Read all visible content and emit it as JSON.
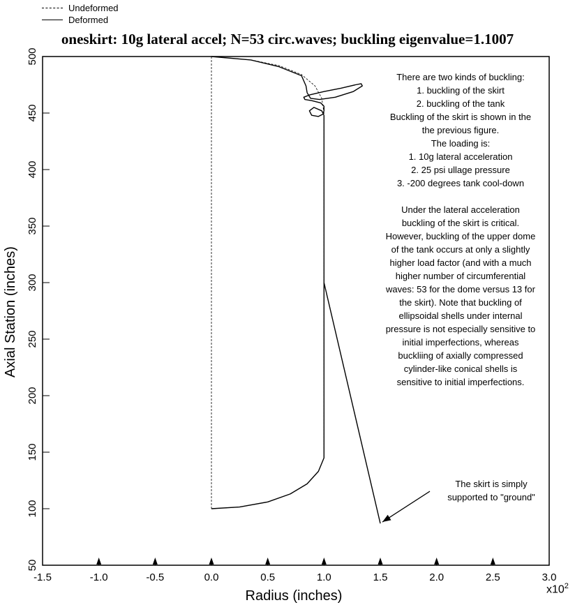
{
  "legend": {
    "undeformed_label": "Undeformed",
    "deformed_label": "Deformed"
  },
  "chart_data": {
    "type": "line",
    "title": "oneskirt: 10g lateral accel; N=53 circ.waves; buckling eigenvalue=1.1007",
    "xlabel": "Radius (inches)",
    "ylabel": "Axial Station (inches)",
    "x_multiplier_label": "x10",
    "x_multiplier_exponent": "2",
    "xlim": [
      -1.5,
      3.0
    ],
    "ylim": [
      50,
      500
    ],
    "x_ticks": [
      "-1.5",
      "-1.0",
      "-0.5",
      "0.0",
      "0.5",
      "1.0",
      "1.5",
      "2.0",
      "2.5",
      "3.0"
    ],
    "y_ticks": [
      "50",
      "100",
      "150",
      "200",
      "250",
      "300",
      "350",
      "400",
      "450",
      "500"
    ],
    "grid": false,
    "legend_placement": "top-left, outside plot",
    "series": [
      {
        "name": "Undeformed",
        "style": "dashed",
        "segments": [
          [
            [
              0.0,
              100
            ],
            [
              0.0,
              500
            ]
          ],
          [
            [
              0.0,
              100
            ],
            [
              0.25,
              101.5
            ],
            [
              0.5,
              106
            ],
            [
              0.7,
              113
            ],
            [
              0.85,
              122
            ],
            [
              0.95,
              133
            ],
            [
              1.0,
              145
            ],
            [
              1.0,
              150
            ]
          ],
          [
            [
              1.0,
              150
            ],
            [
              1.0,
              450
            ]
          ],
          [
            [
              1.0,
              450
            ],
            [
              0.98,
              463
            ],
            [
              0.92,
              474
            ],
            [
              0.8,
              484
            ],
            [
              0.6,
              492
            ],
            [
              0.35,
              497
            ],
            [
              0.0,
              500
            ]
          ],
          [
            [
              1.0,
              300
            ],
            [
              1.5,
              87
            ]
          ]
        ]
      },
      {
        "name": "Deformed",
        "style": "solid",
        "segments": [
          [
            [
              0.0,
              100
            ],
            [
              0.25,
              101.5
            ],
            [
              0.5,
              106
            ],
            [
              0.7,
              113
            ],
            [
              0.85,
              122
            ],
            [
              0.95,
              133
            ],
            [
              1.0,
              145
            ],
            [
              1.0,
              150
            ]
          ],
          [
            [
              1.0,
              150
            ],
            [
              1.0,
              448
            ]
          ],
          [
            [
              1.0,
              448
            ],
            [
              0.98,
              452
            ],
            [
              0.91,
              455
            ],
            [
              0.87,
              452
            ],
            [
              0.89,
              448
            ],
            [
              0.95,
              447
            ],
            [
              0.99,
              449
            ],
            [
              1.0,
              452
            ],
            [
              1.0,
              456
            ],
            [
              0.97,
              459
            ],
            [
              0.89,
              461
            ],
            [
              0.83,
              462
            ],
            [
              0.82,
              464
            ],
            [
              0.87,
              466
            ],
            [
              1.0,
              469
            ],
            [
              1.15,
              472
            ],
            [
              1.28,
              475
            ],
            [
              1.33,
              476
            ],
            [
              1.34,
              474
            ],
            [
              1.26,
              469
            ],
            [
              1.1,
              464
            ],
            [
              0.96,
              462
            ],
            [
              0.88,
              463
            ],
            [
              0.85,
              468
            ],
            [
              0.84,
              474
            ],
            [
              0.8,
              483
            ],
            [
              0.6,
              491
            ],
            [
              0.35,
              497
            ],
            [
              0.0,
              500
            ]
          ],
          [
            [
              1.0,
              300
            ],
            [
              1.5,
              87
            ]
          ]
        ]
      }
    ],
    "annotations": [
      {
        "id": "note",
        "lines": [
          "There are two kinds of buckling:",
          "1. buckling of the skirt",
          "2. buckling of the tank",
          "Buckling of the skirt is shown in the",
          "the previous figure.",
          "The loading is:",
          "1. 10g lateral acceleration",
          "2.  25 psi ullage pressure",
          "3. -200 degrees tank cool-down",
          "",
          "Under the lateral acceleration",
          "buckling of the skirt is critical.",
          "However, buckling of the upper dome",
          "of the tank occurs at only a slightly",
          "higher load factor (and with a much",
          "higher number of circumferential",
          "waves: 53 for the dome versus 13 for",
          "the skirt). Note that buckling of",
          "ellipsoidal shells under internal",
          "pressure is not especially sensitive to",
          "initial imperfections, whereas",
          "buckliing of axially compressed",
          "cylinder-like conical shells is",
          "sensitive to initial imperfections."
        ]
      },
      {
        "id": "callout",
        "lines": [
          "The skirt is simply",
          "supported to \"ground\""
        ],
        "arrow_to": [
          1.5,
          87
        ]
      }
    ],
    "support_markers_x": [
      -1.0,
      -0.5,
      0.0,
      0.5,
      1.0,
      1.5,
      2.0,
      2.5
    ]
  }
}
